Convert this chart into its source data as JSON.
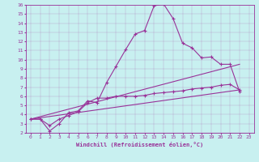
{
  "xlabel": "Windchill (Refroidissement éolien,°C)",
  "bg_color": "#c8f0f0",
  "line_color": "#993399",
  "xlim": [
    -0.5,
    23.5
  ],
  "ylim": [
    2,
    16
  ],
  "xticks": [
    0,
    1,
    2,
    3,
    4,
    5,
    6,
    7,
    8,
    9,
    10,
    11,
    12,
    13,
    14,
    15,
    16,
    17,
    18,
    19,
    20,
    21,
    22,
    23
  ],
  "yticks": [
    2,
    3,
    4,
    5,
    6,
    7,
    8,
    9,
    10,
    11,
    12,
    13,
    14,
    15,
    16
  ],
  "line1_x": [
    0,
    1,
    2,
    3,
    4,
    5,
    6,
    7,
    8,
    9,
    10,
    11,
    12,
    13,
    14,
    15,
    16,
    17,
    18,
    19,
    20,
    21,
    22
  ],
  "line1_y": [
    3.5,
    3.5,
    2.2,
    3.0,
    4.2,
    4.4,
    5.5,
    5.3,
    7.5,
    9.3,
    11.1,
    12.8,
    13.2,
    15.9,
    16.1,
    14.5,
    11.8,
    11.3,
    10.2,
    10.3,
    9.5,
    9.5,
    6.5
  ],
  "line2_x": [
    0,
    1,
    2,
    3,
    4,
    5,
    6,
    7,
    8,
    9,
    10,
    11,
    12,
    13,
    14,
    15,
    16,
    17,
    18,
    19,
    20,
    21,
    22
  ],
  "line2_y": [
    3.5,
    3.5,
    2.8,
    3.5,
    3.9,
    4.3,
    5.3,
    5.8,
    5.8,
    6.0,
    6.0,
    6.0,
    6.1,
    6.3,
    6.4,
    6.5,
    6.6,
    6.8,
    6.9,
    7.0,
    7.2,
    7.3,
    6.7
  ],
  "line3_x": [
    0,
    22
  ],
  "line3_y": [
    3.5,
    6.7
  ],
  "line4_x": [
    0,
    22
  ],
  "line4_y": [
    3.5,
    9.5
  ]
}
